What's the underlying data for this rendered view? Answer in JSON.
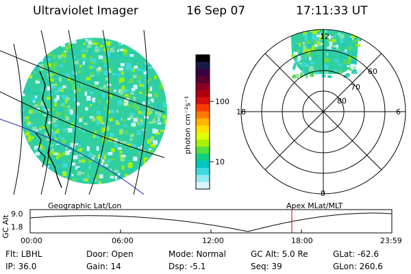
{
  "header": {
    "title": "Ultraviolet Imager",
    "date": "16 Sep 07",
    "time": "17:11:33 UT"
  },
  "panels": {
    "geo_label": "Geographic Lat/Lon",
    "apex_label": "Apex MLat/MLT"
  },
  "colorbar": {
    "unit": "photon cm⁻²s⁻¹",
    "ticks": [
      "100",
      "10"
    ],
    "colors": [
      "#000000",
      "#1a1a4a",
      "#3a0040",
      "#5a0030",
      "#8a0020",
      "#b00010",
      "#d81010",
      "#ff3c00",
      "#ff7800",
      "#ffb400",
      "#ffe000",
      "#e0ff00",
      "#a8f000",
      "#50e040",
      "#10d080",
      "#00c8c0",
      "#40d8e0",
      "#90e8f0",
      "#d8f4fa"
    ]
  },
  "polar": {
    "mlt_labels": [
      "12",
      "18",
      "6",
      "0"
    ],
    "lat_labels": [
      "60",
      "70",
      "80"
    ]
  },
  "altitude_plot": {
    "ylabel": "GC Alt",
    "yticks": [
      "9.0",
      "1.8"
    ],
    "xticks": [
      "00:00",
      "06:00",
      "12:00",
      "18:00",
      "23:59"
    ]
  },
  "info": {
    "filter": "Flt: LBHL",
    "ip": "IP: 36.0",
    "door": "Door: Open",
    "gain": "Gain: 14",
    "mode": "Mode: Normal",
    "dsp": "Dsp:    -5.1",
    "gc_alt": "GC Alt: 5.0 Re",
    "seq": "Seq: 39",
    "glat": "GLat: -62.6",
    "glon": "GLon: 260.6"
  }
}
